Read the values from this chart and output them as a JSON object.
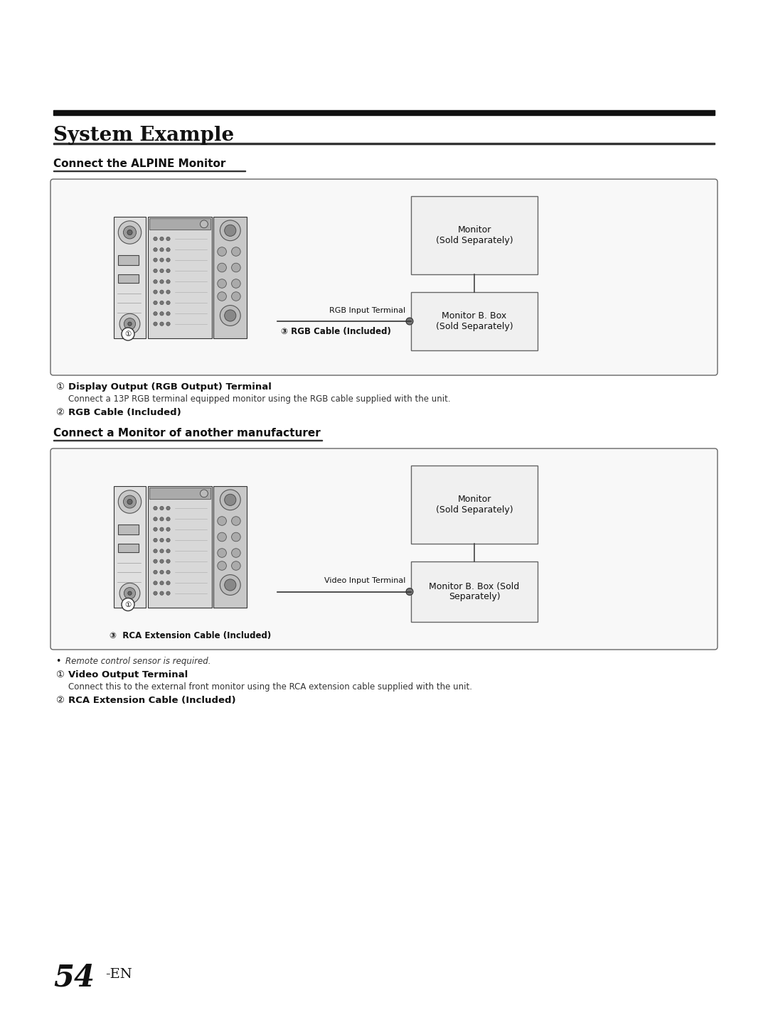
{
  "page_bg": "#ffffff",
  "title": "System Example",
  "section1_label": "Connect the ALPINE Monitor",
  "section2_label": "Connect a Monitor of another manufacturer",
  "box1_top_label": "Monitor\n(Sold Separately)",
  "box1_bot_label": "Monitor B. Box\n(Sold Separately)",
  "box2_top_label": "Monitor\n(Sold Separately)",
  "box2_bot_label": "Monitor B. Box (Sold\nSeparately)",
  "rgb_input_terminal": "RGB Input Terminal",
  "rgb_cable_label": "③ RGB Cable (Included)",
  "video_input_terminal": "Video Input Terminal",
  "rca_cable_label": "③  RCA Extension Cable (Included)",
  "note_remote": "Remote control sensor is required.",
  "item1_num": "①",
  "item1_bold": "Display Output (RGB Output) Terminal",
  "item1_desc": "Connect a 13P RGB terminal equipped monitor using the RGB cable supplied with the unit.",
  "item2_num": "②",
  "item2_bold": "RGB Cable (Included)",
  "item3_num": "①",
  "item3_bold": "Video Output Terminal",
  "item3_desc": "Connect this to the external front monitor using the RCA extension cable supplied with the unit.",
  "item4_num": "②",
  "item4_bold": "RCA Extension Cable (Included)",
  "page_number": "54",
  "page_suffix": "-EN"
}
